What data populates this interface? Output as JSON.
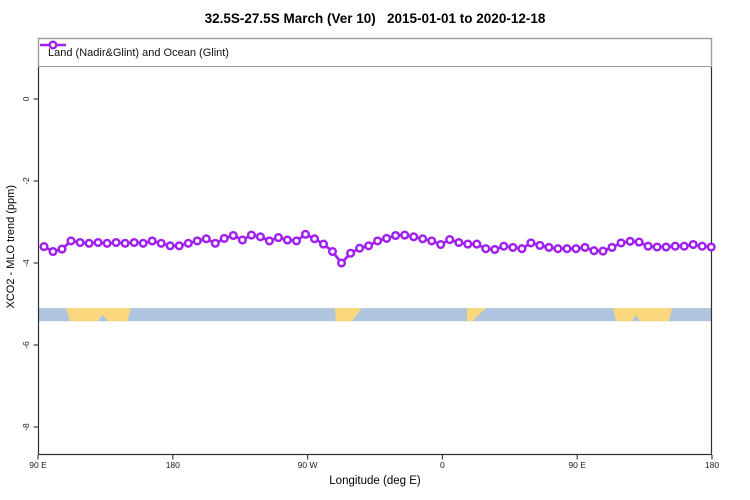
{
  "title": "32.5S-27.5S March (Ver 10)   2015-01-01 to 2020-12-18",
  "legend": {
    "label": "Land (Nadir&Glint) and Ocean (Glint)",
    "marker_color": "#A020F0"
  },
  "axes": {
    "xlabel": "Longitude (deg E)",
    "ylabel": "XCO2 - MLO trend (ppm)"
  },
  "colors": {
    "series": "#A020F0",
    "marker_fill": "#FFFFFF",
    "ocean_band": "#AEC4DF",
    "land_patch": "#FBD87E",
    "plot_border": "#2F2F2F",
    "tick_text": "#1C1C1C"
  },
  "chart_data": {
    "type": "line",
    "title": "32.5S-27.5S March (Ver 10)   2015-01-01 to 2020-12-18",
    "xlabel": "Longitude (deg E)",
    "ylabel": "XCO2 - MLO trend (ppm)",
    "x_axis": {
      "range_deg": [
        90,
        540
      ],
      "ticks_deg": [
        90,
        180,
        270,
        360,
        450,
        540
      ],
      "tick_labels": [
        "90 E",
        "180",
        "90 W",
        "0",
        "90 E",
        "180"
      ]
    },
    "y_axis": {
      "range": [
        1.5,
        -8.7
      ],
      "ticks": [
        0,
        -2,
        -4,
        -6,
        -8
      ],
      "tick_labels": [
        "0",
        "-2",
        "-4",
        "-6",
        "-8"
      ]
    },
    "grid": false,
    "legend_position": "top-left-box",
    "x_start_deg": 94.0,
    "x_step_deg": 6.02,
    "series": [
      {
        "name": "Land (Nadir&Glint) and Ocean (Glint)",
        "color": "#A020F0",
        "marker": "open-circle",
        "values": [
          -3.6,
          -3.72,
          -3.66,
          -3.46,
          -3.5,
          -3.52,
          -3.5,
          -3.52,
          -3.5,
          -3.52,
          -3.5,
          -3.52,
          -3.46,
          -3.52,
          -3.58,
          -3.58,
          -3.52,
          -3.46,
          -3.41,
          -3.52,
          -3.4,
          -3.33,
          -3.44,
          -3.32,
          -3.36,
          -3.46,
          -3.38,
          -3.44,
          -3.46,
          -3.3,
          -3.41,
          -3.54,
          -3.72,
          -4.0,
          -3.76,
          -3.64,
          -3.58,
          -3.46,
          -3.4,
          -3.33,
          -3.32,
          -3.36,
          -3.41,
          -3.46,
          -3.55,
          -3.43,
          -3.5,
          -3.54,
          -3.54,
          -3.65,
          -3.67,
          -3.59,
          -3.62,
          -3.65,
          -3.51,
          -3.57,
          -3.62,
          -3.65,
          -3.65,
          -3.65,
          -3.62,
          -3.7,
          -3.71,
          -3.62,
          -3.51,
          -3.47,
          -3.49,
          -3.59,
          -3.61,
          -3.61,
          -3.59,
          -3.59,
          -3.55,
          -3.59,
          -3.61
        ]
      }
    ],
    "surface_band": {
      "description": "ocean/land strip",
      "y_top_value": -5.1,
      "y_bottom_value": -5.42,
      "ocean_color": "#AEC4DF",
      "land_color": "#FBD87E",
      "land_patches_deg": [
        [
          [
            108.7,
            0
          ],
          [
            152.1,
            0
          ],
          [
            149.5,
            1
          ],
          [
            136.7,
            1
          ],
          [
            133.2,
            0.5
          ],
          [
            129.7,
            1
          ],
          [
            111.5,
            1
          ]
        ],
        [
          [
            288.3,
            0
          ],
          [
            306.3,
            0
          ],
          [
            299.5,
            1
          ],
          [
            288.8,
            1
          ]
        ],
        [
          [
            376.4,
            0
          ],
          [
            389.1,
            0
          ],
          [
            379.8,
            1
          ],
          [
            376.4,
            1
          ]
        ],
        [
          [
            473.9,
            0
          ],
          [
            513.3,
            0
          ],
          [
            511.2,
            1
          ],
          [
            491.9,
            1
          ],
          [
            489.0,
            0.5
          ],
          [
            486.6,
            1
          ],
          [
            476.0,
            1
          ]
        ]
      ]
    }
  }
}
